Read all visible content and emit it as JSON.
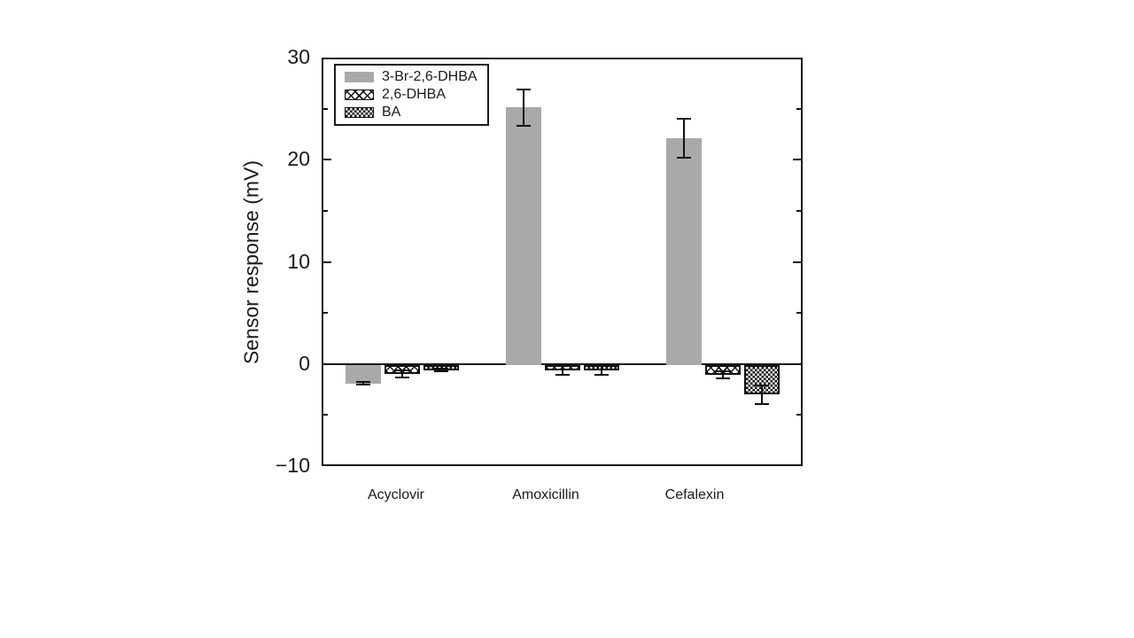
{
  "chart_data": {
    "type": "bar",
    "title": "",
    "xlabel": "",
    "ylabel": "Sensor response (mV)",
    "categories": [
      "Acyclovir",
      "Amoxicillin",
      "Cefalexin"
    ],
    "series": [
      {
        "name": "3-Br-2,6-DHBA",
        "style": "solid-gray",
        "color": "#a9a9a9",
        "values": [
          -1.9,
          25.1,
          22.1
        ],
        "errors": [
          0.15,
          1.8,
          1.9
        ]
      },
      {
        "name": "2,6-DHBA",
        "style": "diamond-crosshatch",
        "color": "#ffffff",
        "values": [
          -1.0,
          -0.6,
          -1.1
        ],
        "errors": [
          0.35,
          0.5,
          0.35
        ]
      },
      {
        "name": "BA",
        "style": "dense-checker",
        "color": "#222222",
        "values": [
          -0.6,
          -0.6,
          -3.0
        ],
        "errors": [
          0.15,
          0.45,
          0.9
        ]
      }
    ],
    "ylim": [
      -10,
      30
    ],
    "yticks_major": [
      30,
      20,
      10,
      0,
      -10
    ],
    "ytick_labels": [
      "30",
      "20",
      "10",
      "0",
      "−10"
    ],
    "yticks_minor": [
      25,
      15,
      5,
      -5
    ],
    "grid": false,
    "error_bars": true,
    "legend_position": "top-left",
    "axis_color": "#1a1a1a"
  }
}
